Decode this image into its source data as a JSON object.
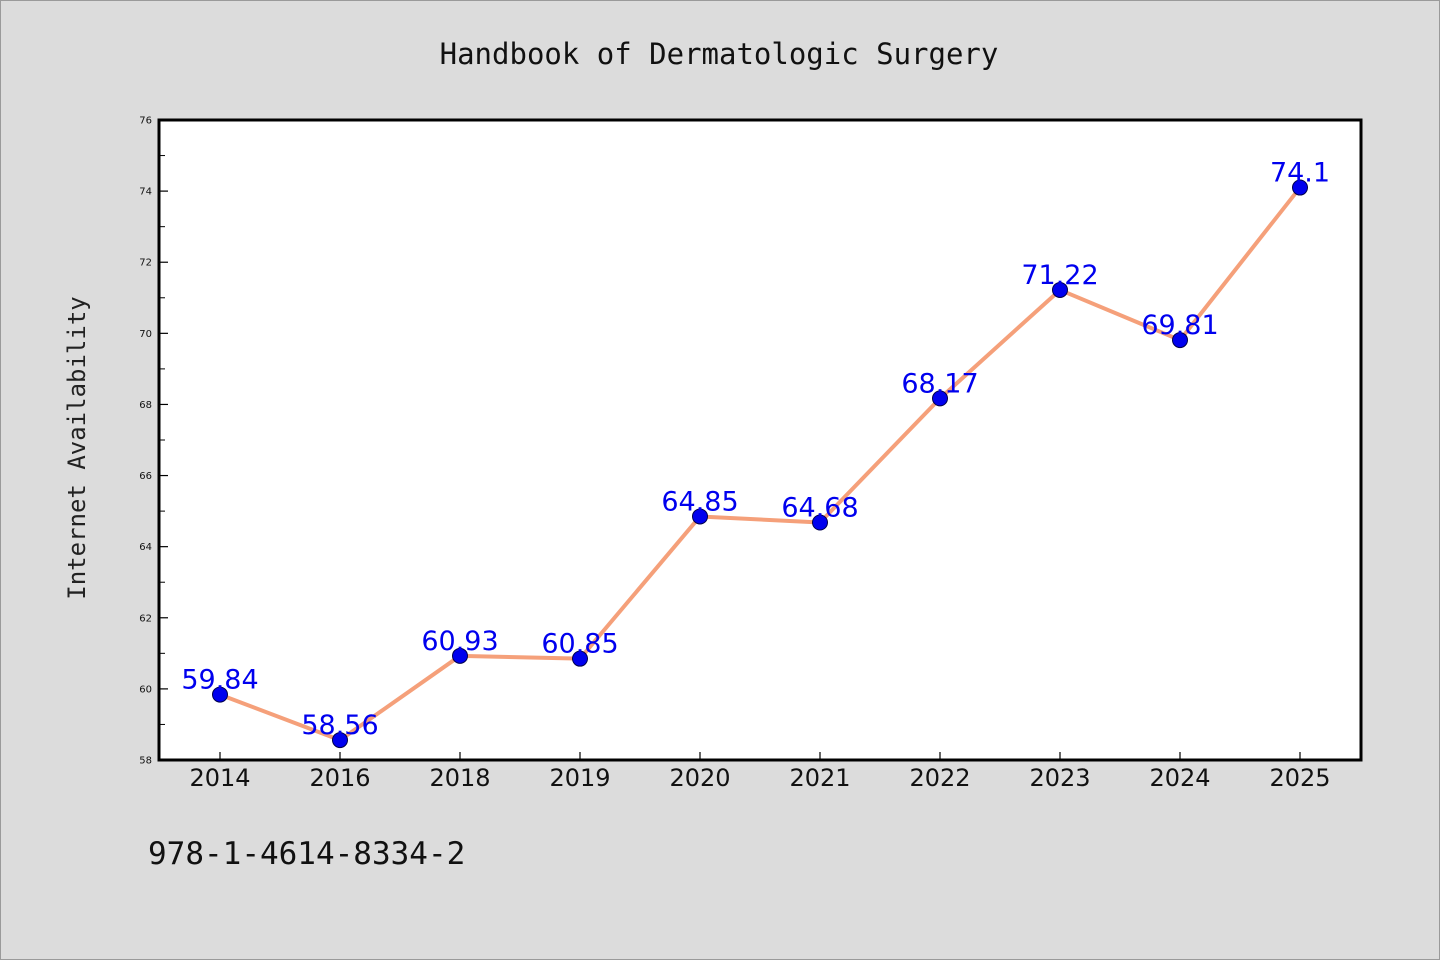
{
  "chart_data": {
    "type": "line",
    "title": "Handbook of Dermatologic Surgery",
    "xlabel": "",
    "ylabel": "Internet Availability",
    "categories": [
      "2014",
      "2016",
      "2018",
      "2019",
      "2020",
      "2021",
      "2022",
      "2023",
      "2024",
      "2025"
    ],
    "values": [
      59.84,
      58.56,
      60.93,
      60.85,
      64.85,
      64.68,
      68.17,
      71.22,
      69.81,
      74.1
    ],
    "data_labels": [
      "59.84",
      "58.56",
      "60.93",
      "60.85",
      "64.85",
      "64.68",
      "68.17",
      "71.22",
      "69.81",
      "74.1"
    ],
    "ylim": [
      58,
      76
    ],
    "yticks": [
      "58",
      "60",
      "62",
      "64",
      "66",
      "68",
      "70",
      "72",
      "74",
      "76"
    ],
    "grid": false,
    "legend": "none",
    "colors": {
      "line": "#f5a07a",
      "marker": "#0000ee",
      "data_label": "#0000ee",
      "plot_background": "#ffffff",
      "page_background": "#dcdcdc"
    }
  },
  "footer": {
    "isbn": "978-1-4614-8334-2"
  }
}
